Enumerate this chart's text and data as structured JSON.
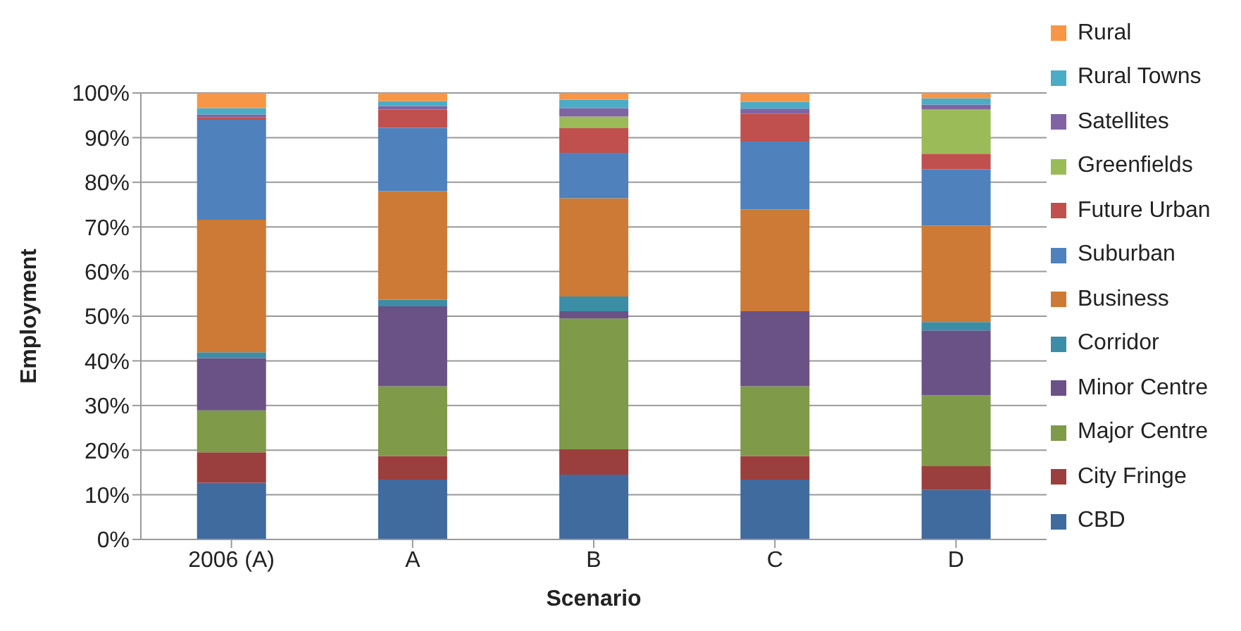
{
  "chart_data": {
    "type": "bar",
    "stacked": true,
    "xlabel": "Scenario",
    "ylabel": "Employment",
    "categories": [
      "2006 (A)",
      "A",
      "B",
      "C",
      "D"
    ],
    "series": [
      {
        "name": "CBD",
        "color": "#3f6b9e",
        "values": [
          12.7,
          13.4,
          14.5,
          13.4,
          11.1
        ]
      },
      {
        "name": "City Fringe",
        "color": "#9b3f3e",
        "values": [
          6.8,
          5.3,
          5.7,
          5.3,
          5.3
        ]
      },
      {
        "name": "Major Centre",
        "color": "#7f9a48",
        "values": [
          9.4,
          15.6,
          29.3,
          15.6,
          15.9
        ]
      },
      {
        "name": "Minor Centre",
        "color": "#6a5186",
        "values": [
          11.7,
          17.9,
          1.6,
          16.8,
          14.5
        ]
      },
      {
        "name": "Corridor",
        "color": "#3b8ea5",
        "values": [
          1.3,
          1.5,
          3.3,
          0,
          1.9
        ]
      },
      {
        "name": "Business",
        "color": "#cc7a35",
        "values": [
          29.7,
          24.3,
          22.0,
          22.8,
          21.6
        ]
      },
      {
        "name": "Suburban",
        "color": "#4f81bd",
        "values": [
          22.4,
          14.2,
          10.2,
          15.2,
          12.6
        ]
      },
      {
        "name": "Future Urban",
        "color": "#c0504d",
        "values": [
          0.6,
          4.1,
          5.5,
          6.3,
          3.5
        ]
      },
      {
        "name": "Greenfields",
        "color": "#9bbb59",
        "values": [
          0,
          0,
          2.6,
          0,
          9.9
        ]
      },
      {
        "name": "Satellites",
        "color": "#8064a2",
        "values": [
          0.6,
          0.8,
          1.9,
          1.1,
          1.1
        ]
      },
      {
        "name": "Rural Towns",
        "color": "#4bacc6",
        "values": [
          1.4,
          1.1,
          1.9,
          1.5,
          1.4
        ]
      },
      {
        "name": "Rural",
        "color": "#f79646",
        "values": [
          3.4,
          1.8,
          1.5,
          2.0,
          1.2
        ]
      }
    ],
    "ylim": [
      0,
      100
    ],
    "yticks": [
      {
        "value": 0,
        "label": "0%"
      },
      {
        "value": 10,
        "label": "10%"
      },
      {
        "value": 20,
        "label": "20%"
      },
      {
        "value": 30,
        "label": "30%"
      },
      {
        "value": 40,
        "label": "40%"
      },
      {
        "value": 50,
        "label": "50%"
      },
      {
        "value": 60,
        "label": "60%"
      },
      {
        "value": 70,
        "label": "70%"
      },
      {
        "value": 80,
        "label": "80%"
      },
      {
        "value": 90,
        "label": "90%"
      },
      {
        "value": 100,
        "label": "100%"
      }
    ],
    "grid": "y",
    "legend": "right"
  }
}
